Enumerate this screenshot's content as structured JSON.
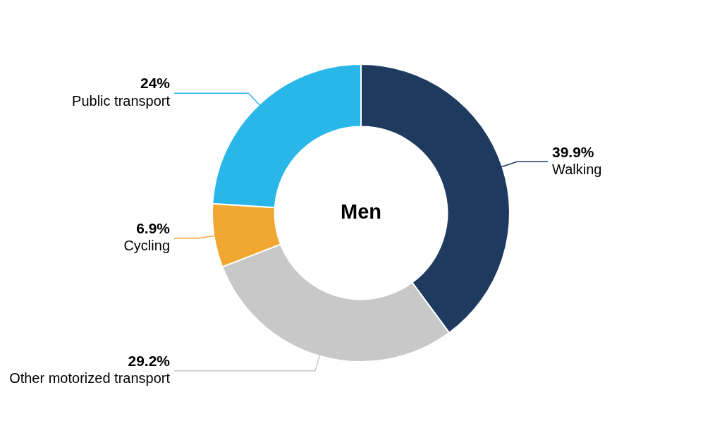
{
  "chart_data": {
    "type": "doughnut",
    "title": "Men",
    "categories": [
      "Walking",
      "Other motorized transport",
      "Cycling",
      "Public transport"
    ],
    "values": [
      39.9,
      29.2,
      6.9,
      24.0
    ],
    "value_labels": [
      "39.9%",
      "29.2%",
      "6.9%",
      "24%"
    ],
    "colors": [
      "#1e3a5f",
      "#c8c8c8",
      "#f0a830",
      "#29b6e8"
    ],
    "data_labels": true
  }
}
